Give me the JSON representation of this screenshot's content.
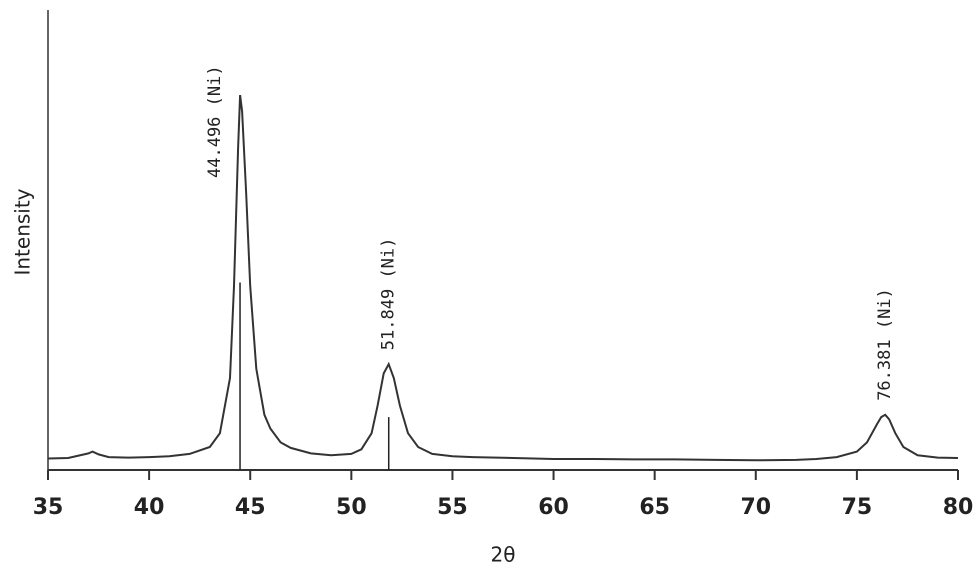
{
  "chart_data": {
    "type": "line",
    "x_label": "2θ",
    "y_label": "Intensity",
    "xlim": [
      35,
      80
    ],
    "ylim": [
      0,
      100
    ],
    "xticks": [
      35,
      40,
      45,
      50,
      55,
      60,
      65,
      70,
      75,
      80
    ],
    "x": [
      35,
      36,
      37,
      37.2,
      37.5,
      38,
      39,
      40,
      41,
      42,
      43,
      43.5,
      44,
      44.2,
      44.4,
      44.5,
      44.6,
      44.8,
      45,
      45.3,
      45.7,
      46,
      46.5,
      47,
      48,
      49,
      50,
      50.5,
      51,
      51.3,
      51.6,
      51.85,
      52.1,
      52.4,
      52.8,
      53.3,
      54,
      55,
      56,
      58,
      60,
      62,
      64,
      66,
      68,
      70,
      72,
      73,
      74,
      75,
      75.5,
      76,
      76.2,
      76.4,
      76.6,
      76.9,
      77.3,
      78,
      79,
      80
    ],
    "series": [
      {
        "color": "#333333",
        "values": [
          2.5,
          2.6,
          3.6,
          4.0,
          3.4,
          2.8,
          2.7,
          2.8,
          3.0,
          3.5,
          5,
          8,
          20,
          40,
          70,
          81.5,
          78,
          60,
          40,
          22,
          12,
          9,
          6,
          4.8,
          3.6,
          3.2,
          3.5,
          4.5,
          8,
          14,
          21,
          23,
          20,
          14,
          8,
          5,
          3.5,
          3,
          2.8,
          2.6,
          2.4,
          2.4,
          2.3,
          2.3,
          2.2,
          2.1,
          2.2,
          2.4,
          2.8,
          4,
          6,
          10,
          11.5,
          12,
          11,
          8,
          5,
          3.2,
          2.7,
          2.6
        ]
      }
    ],
    "annotations": [
      {
        "x": 44.496,
        "label": "44.496 (Ni)"
      },
      {
        "x": 51.849,
        "label": "51.849 (Ni)"
      },
      {
        "x": 76.381,
        "label": "76.381 (Ni)"
      }
    ]
  }
}
